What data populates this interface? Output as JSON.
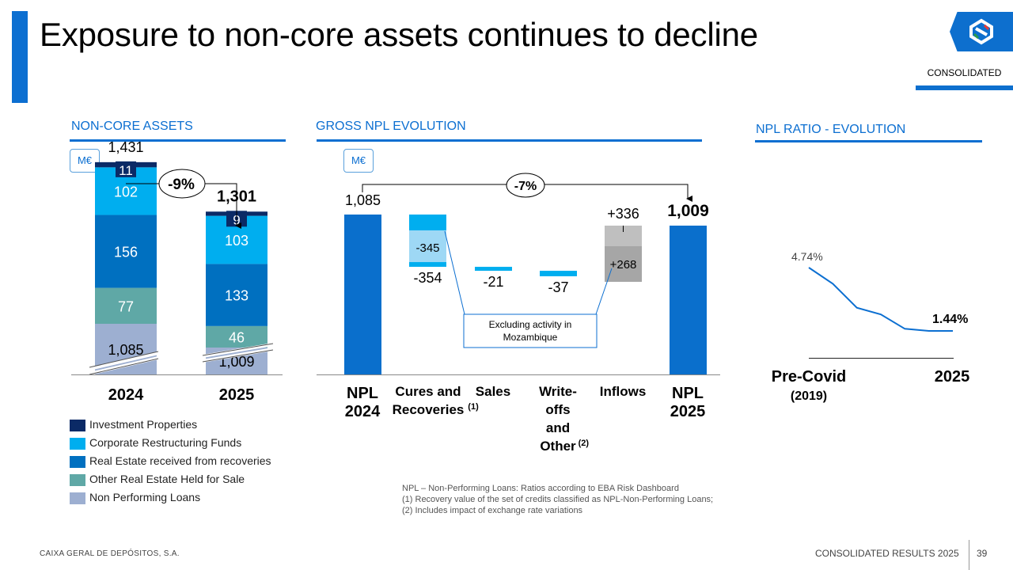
{
  "header": {
    "title": "Exposure to non-core assets continues to decline",
    "badge": "CONSOLIDATED"
  },
  "sections": {
    "non_core": {
      "title": "NON-CORE ASSETS",
      "unit": "M€"
    },
    "npl_evolution": {
      "title": "GROSS NPL EVOLUTION",
      "unit": "M€"
    },
    "npl_ratio": {
      "title": "NPL RATIO - EVOLUTION"
    }
  },
  "legend": [
    {
      "label": "Investment Properties",
      "color": "#0b2a66"
    },
    {
      "label": "Corporate Restructuring Funds",
      "color": "#00aeef"
    },
    {
      "label": "Real Estate received from recoveries",
      "color": "#0070c0"
    },
    {
      "label": "Other Real Estate Held for Sale",
      "color": "#5fa8a6"
    },
    {
      "label": "Non Performing Loans",
      "color": "#9dafd1"
    }
  ],
  "footnotes": [
    "NPL – Non-Performing Loans: Ratios according to EBA Risk Dashboard",
    "(1) Recovery value of the set of credits classified as NPL-Non-Performing Loans;",
    "(2) Includes impact of exchange rate variations"
  ],
  "footer": {
    "company": "CAIXA GERAL DE DEPÓSITOS, S.A.",
    "report": "CONSOLIDATED RESULTS 2025",
    "page": "39"
  },
  "chart_data": [
    {
      "id": "non_core_assets",
      "type": "bar",
      "stacked": true,
      "title": "NON-CORE ASSETS",
      "categories": [
        "2024",
        "2025"
      ],
      "totals": [
        "1,431",
        "1,301"
      ],
      "change_label": "-9%",
      "series": [
        {
          "name": "Non Performing Loans",
          "values": [
            1085,
            1009
          ],
          "labels": [
            "1,085",
            "1,009"
          ],
          "color": "#9dafd1"
        },
        {
          "name": "Other Real Estate Held for Sale",
          "values": [
            77,
            46
          ],
          "labels": [
            "77",
            "46"
          ],
          "color": "#5fa8a6"
        },
        {
          "name": "Real Estate received from recoveries",
          "values": [
            156,
            133
          ],
          "labels": [
            "156",
            "133"
          ],
          "color": "#0070c0"
        },
        {
          "name": "Corporate Restructuring Funds",
          "values": [
            102,
            103
          ],
          "labels": [
            "102",
            "103"
          ],
          "color": "#00aeef"
        },
        {
          "name": "Investment Properties",
          "values": [
            11,
            9
          ],
          "labels": [
            "11",
            "9"
          ],
          "color": "#0b2a66"
        }
      ],
      "axis_break": true
    },
    {
      "id": "gross_npl_evolution",
      "type": "bar",
      "subtype": "waterfall",
      "title": "GROSS NPL EVOLUTION",
      "change_label": "-7%",
      "steps": [
        {
          "label": "NPL 2024",
          "value": 1085,
          "value_label": "1,085",
          "kind": "total"
        },
        {
          "label": "Cures and Recoveries",
          "label_sup": "(1)",
          "value": -354,
          "value_label": "-354",
          "kind": "decrease",
          "excl_value": -345,
          "excl_label": "-345"
        },
        {
          "label": "Sales",
          "value": -21,
          "value_label": "-21",
          "kind": "decrease"
        },
        {
          "label": "Write-offs and Other",
          "label_sup": "(2)",
          "value": -37,
          "value_label": "-37",
          "kind": "decrease"
        },
        {
          "label": "Inflows",
          "value": 336,
          "value_label": "+336",
          "kind": "increase",
          "excl_value": 268,
          "excl_label": "+268"
        },
        {
          "label": "NPL 2025",
          "value": 1009,
          "value_label": "1,009",
          "kind": "total"
        }
      ],
      "annotation": "Excluding activity in Mozambique"
    },
    {
      "id": "npl_ratio_evolution",
      "type": "line",
      "title": "NPL RATIO - EVOLUTION",
      "x_labels": [
        "Pre-Covid",
        "2025"
      ],
      "x_sublabel": "(2019)",
      "series": [
        {
          "values": [
            4.74,
            3.9,
            2.65,
            2.3,
            1.55,
            1.44,
            1.44
          ]
        }
      ],
      "start_label": "4.74%",
      "end_label": "1.44%"
    }
  ]
}
